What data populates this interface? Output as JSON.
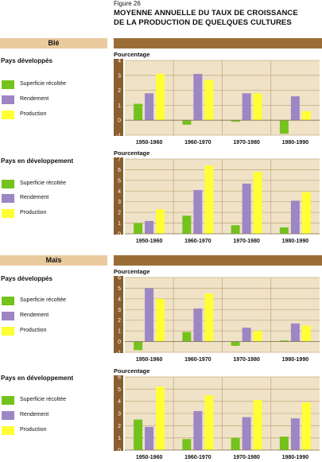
{
  "figure": {
    "label": "Figure 26",
    "title_line1": "MOYENNE ANNUELLE DU TAUX DE CROISSANCE",
    "title_line2": "DE LA PRODUCTION DE QUELQUES CULTURES"
  },
  "sections": [
    {
      "name": "Blé"
    },
    {
      "name": "Maïs"
    }
  ],
  "legend": {
    "labels": [
      "Superficie récoltée",
      "Rendement",
      "Production"
    ],
    "colors": [
      "#74c21c",
      "#9d86c4",
      "#ffff33"
    ]
  },
  "colors": {
    "section_bar": "#eacb9e",
    "dark_bar": "#9a6d38",
    "plot_bg": "#efe2c6",
    "grid": "#c6ae83",
    "axis_strip": "#8a5f30"
  },
  "chart_data": [
    {
      "type": "bar",
      "section": "Blé",
      "group_title": "Pays développés",
      "ylabel": "Pourcentage",
      "ylim": [
        -1,
        4
      ],
      "yticks": [
        -1,
        0,
        1,
        2,
        3,
        4
      ],
      "categories": [
        "1950-1960",
        "1960-1970",
        "1970-1980",
        "1980-1990"
      ],
      "series": [
        {
          "name": "Superficie récoltée",
          "values": [
            1.1,
            -0.3,
            -0.1,
            -0.9
          ]
        },
        {
          "name": "Rendement",
          "values": [
            1.8,
            3.1,
            1.8,
            1.6
          ]
        },
        {
          "name": "Production",
          "values": [
            3.1,
            2.7,
            1.8,
            0.6
          ]
        }
      ]
    },
    {
      "type": "bar",
      "section": "Blé",
      "group_title": "Pays en développement",
      "ylabel": "Pourcentage",
      "ylim": [
        0,
        7
      ],
      "yticks": [
        0,
        1,
        2,
        3,
        4,
        5,
        6,
        7
      ],
      "categories": [
        "1950-1960",
        "1960-1970",
        "1970-1980",
        "1980-1990"
      ],
      "series": [
        {
          "name": "Superficie récoltée",
          "values": [
            1.0,
            1.7,
            0.8,
            0.6
          ]
        },
        {
          "name": "Rendement",
          "values": [
            1.2,
            4.1,
            4.7,
            3.1
          ]
        },
        {
          "name": "Production",
          "values": [
            2.3,
            6.4,
            5.8,
            3.9
          ]
        }
      ]
    },
    {
      "type": "bar",
      "section": "Maïs",
      "group_title": "Pays développés",
      "ylabel": "Pourcentage",
      "ylim": [
        -1,
        6
      ],
      "yticks": [
        -1,
        0,
        1,
        2,
        3,
        4,
        5,
        6
      ],
      "categories": [
        "1950-1960",
        "1960-1970",
        "1970-1980",
        "1980-1990"
      ],
      "series": [
        {
          "name": "Superficie récoltée",
          "values": [
            -0.8,
            0.9,
            -0.4,
            0.1
          ]
        },
        {
          "name": "Rendement",
          "values": [
            5.0,
            3.1,
            1.3,
            1.7
          ]
        },
        {
          "name": "Production",
          "values": [
            4.0,
            4.5,
            1.0,
            1.5
          ]
        }
      ]
    },
    {
      "type": "bar",
      "section": "Maïs",
      "group_title": "Pays en développement",
      "ylabel": "Pourcentage",
      "ylim": [
        0,
        6
      ],
      "yticks": [
        0,
        1,
        2,
        3,
        4,
        5,
        6
      ],
      "categories": [
        "1950-1960",
        "1960-1970",
        "1970-1980",
        "1980-1990"
      ],
      "series": [
        {
          "name": "Superficie récoltée",
          "values": [
            2.5,
            0.9,
            1.0,
            1.1
          ]
        },
        {
          "name": "Rendement",
          "values": [
            1.9,
            3.2,
            2.7,
            2.6
          ]
        },
        {
          "name": "Production",
          "values": [
            5.2,
            4.5,
            4.1,
            3.9
          ]
        }
      ]
    }
  ]
}
